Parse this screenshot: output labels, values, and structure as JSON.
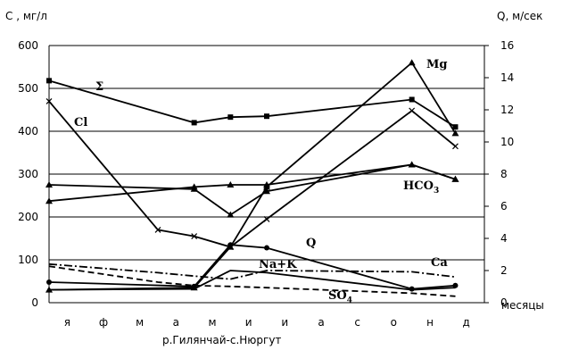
{
  "chart_data": {
    "type": "line",
    "y_left_label": "С , мг/л",
    "y_right_label": "Q, м/сек",
    "x_label": "месяцы",
    "caption": "р.Гилянчай-с.Нюргут",
    "categories": [
      "я",
      "ф",
      "м",
      "а",
      "м",
      "и",
      "и",
      "а",
      "с",
      "о",
      "н",
      "д"
    ],
    "x_positions": [
      1,
      2,
      3,
      4,
      5,
      6,
      7,
      8,
      9,
      10,
      11,
      12
    ],
    "y_left_ticks": [
      "0",
      "100",
      "200",
      "300",
      "400",
      "500",
      "600"
    ],
    "y_right_ticks": [
      "0",
      "2",
      "4",
      "6",
      "8",
      "10",
      "12",
      "14",
      "16"
    ],
    "ylim_left": [
      0,
      600
    ],
    "ylim_right": [
      0,
      16
    ],
    "grid": true,
    "series": [
      {
        "name": "Σ",
        "label": "Σ",
        "axis": "left",
        "style": "solid",
        "marker": "square",
        "x": [
          0,
          4,
          5,
          6,
          10,
          11.2
        ],
        "y": [
          518,
          420,
          433,
          435,
          474,
          410
        ]
      },
      {
        "name": "Mg",
        "label": "Mg",
        "axis": "left",
        "style": "solid",
        "marker": "triangle",
        "x": [
          0,
          4,
          5,
          6,
          10,
          11.2
        ],
        "y": [
          30,
          35,
          130,
          270,
          560,
          395
        ]
      },
      {
        "name": "Cl",
        "label": "Cl",
        "axis": "left",
        "style": "solid",
        "marker": "x",
        "x": [
          0,
          3,
          4,
          5,
          6,
          10,
          11.2
        ],
        "y": [
          470,
          170,
          155,
          130,
          195,
          448,
          365
        ]
      },
      {
        "name": "HCO3",
        "label": "HCO",
        "sub": "3",
        "axis": "left",
        "style": "solid",
        "marker": "triangle",
        "x": [
          0,
          4,
          5,
          6,
          10,
          11.2
        ],
        "y": [
          237,
          270,
          275,
          275,
          322,
          288
        ]
      },
      {
        "name": "Q",
        "label": "Q",
        "axis": "left",
        "style": "solid",
        "marker": "triangle",
        "x": [
          0,
          4,
          5,
          6,
          10,
          11.2
        ],
        "y": [
          275,
          265,
          205,
          260,
          322,
          288
        ]
      },
      {
        "name": "Na+K",
        "label": "Na+K",
        "axis": "left",
        "style": "solid",
        "marker": "circle",
        "x": [
          0,
          4,
          5,
          6,
          10,
          11.2
        ],
        "y": [
          48,
          38,
          135,
          128,
          32,
          40
        ]
      },
      {
        "name": "Ca",
        "label": "Ca",
        "axis": "left",
        "style": "dashdot",
        "marker": "none",
        "x": [
          0,
          3,
          4,
          5,
          6,
          10,
          11.2
        ],
        "y": [
          90,
          70,
          62,
          55,
          75,
          72,
          60
        ]
      },
      {
        "name": "SO4",
        "label": "SO",
        "sub": "4",
        "axis": "left",
        "style": "dashed",
        "marker": "none",
        "x": [
          0,
          3,
          4,
          5,
          6,
          10,
          11.2
        ],
        "y": [
          85,
          48,
          40,
          38,
          35,
          22,
          15
        ]
      },
      {
        "name": "Na+K-2",
        "label": "",
        "axis": "left",
        "style": "solid",
        "marker": "none",
        "x": [
          0,
          4,
          5,
          6,
          10,
          11.2
        ],
        "y": [
          30,
          32,
          75,
          70,
          30,
          35
        ]
      }
    ]
  }
}
